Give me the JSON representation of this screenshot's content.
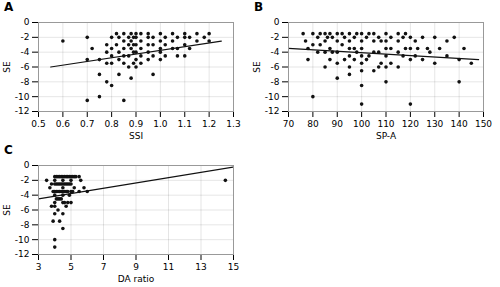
{
  "chart_data": [
    {
      "type": "scatter",
      "title": "A",
      "xlabel": "SSI",
      "ylabel": "SE",
      "xlim": [
        0.5,
        1.3
      ],
      "ylim": [
        -12,
        0
      ],
      "xticks": [
        0.5,
        0.6,
        0.7,
        0.8,
        0.9,
        {
          "value": 1.0,
          "label": "1.0"
        },
        1.1,
        1.2,
        1.3
      ],
      "yticks": [
        -12,
        -10,
        -8,
        -6,
        -4,
        -2,
        0
      ],
      "grid": true,
      "series": [
        {
          "type": "scatter",
          "color": "#111111",
          "x": [
            0.6,
            0.7,
            0.7,
            0.7,
            0.72,
            0.75,
            0.75,
            0.75,
            0.78,
            0.78,
            0.78,
            0.78,
            0.8,
            0.8,
            0.8,
            0.8,
            0.8,
            0.82,
            0.82,
            0.83,
            0.83,
            0.83,
            0.83,
            0.85,
            0.85,
            0.85,
            0.85,
            0.85,
            0.85,
            0.87,
            0.87,
            0.87,
            0.87,
            0.88,
            0.88,
            0.88,
            0.88,
            0.89,
            0.89,
            0.89,
            0.89,
            0.9,
            0.9,
            0.9,
            0.9,
            0.9,
            0.9,
            0.92,
            0.92,
            0.92,
            0.92,
            0.92,
            0.95,
            0.95,
            0.95,
            0.95,
            0.95,
            0.97,
            0.97,
            0.97,
            0.97,
            1.0,
            1.0,
            1.0,
            1.0,
            1.0,
            1.02,
            1.02,
            1.02,
            1.05,
            1.05,
            1.05,
            1.07,
            1.07,
            1.07,
            1.1,
            1.1,
            1.1,
            1.1,
            1.12,
            1.12,
            1.15,
            1.15,
            1.18,
            1.2,
            1.2
          ],
          "values": [
            -2.5,
            -2.0,
            -5.0,
            -10.5,
            -3.5,
            -5.0,
            -7.0,
            -10.0,
            -3.0,
            -4.0,
            -5.5,
            -8.0,
            -2.0,
            -3.5,
            -4.5,
            -5.5,
            -8.5,
            -1.5,
            -3.0,
            -2.0,
            -4.0,
            -5.0,
            -7.0,
            -1.5,
            -2.5,
            -3.5,
            -4.5,
            -5.5,
            -10.5,
            -2.0,
            -3.0,
            -4.5,
            -6.0,
            -1.5,
            -2.5,
            -3.5,
            -7.5,
            -2.0,
            -3.0,
            -4.0,
            -5.5,
            -1.5,
            -2.0,
            -3.0,
            -4.0,
            -5.0,
            -6.0,
            -1.5,
            -2.5,
            -3.5,
            -4.5,
            -5.5,
            -1.5,
            -2.0,
            -3.0,
            -4.0,
            -5.0,
            -2.0,
            -3.0,
            -4.5,
            -7.0,
            -1.5,
            -2.5,
            -3.5,
            -4.0,
            -5.0,
            -2.0,
            -3.0,
            -4.5,
            -1.5,
            -2.5,
            -3.5,
            -2.0,
            -3.5,
            -4.5,
            -1.5,
            -2.0,
            -3.0,
            -4.5,
            -2.0,
            -3.5,
            -1.5,
            -2.5,
            -2.0,
            -1.5,
            -2.5
          ]
        },
        {
          "type": "line",
          "color": "#111111",
          "x": [
            0.55,
            1.25
          ],
          "values": [
            -6.0,
            -2.5
          ]
        }
      ]
    },
    {
      "type": "scatter",
      "title": "B",
      "xlabel": "SP-A",
      "ylabel": "SE",
      "xlim": [
        70,
        150
      ],
      "ylim": [
        -12,
        0
      ],
      "xticks": [
        70,
        80,
        90,
        100,
        110,
        120,
        130,
        140,
        150
      ],
      "yticks": [
        -12,
        -10,
        -8,
        -6,
        -4,
        -2,
        0
      ],
      "grid": true,
      "series": [
        {
          "type": "scatter",
          "color": "#111111",
          "x": [
            76,
            77,
            78,
            78,
            80,
            80,
            80,
            82,
            82,
            83,
            83,
            85,
            85,
            85,
            85,
            86,
            87,
            87,
            87,
            88,
            88,
            90,
            90,
            90,
            90,
            90,
            92,
            92,
            93,
            93,
            95,
            95,
            95,
            95,
            95,
            95,
            97,
            97,
            97,
            98,
            98,
            100,
            100,
            100,
            100,
            100,
            100,
            100,
            100,
            102,
            102,
            103,
            103,
            105,
            105,
            105,
            105,
            107,
            107,
            107,
            108,
            108,
            110,
            110,
            110,
            110,
            110,
            110,
            112,
            112,
            112,
            115,
            115,
            115,
            115,
            117,
            117,
            118,
            118,
            120,
            120,
            120,
            120,
            122,
            122,
            123,
            125,
            125,
            127,
            128,
            130,
            130,
            132,
            135,
            135,
            138,
            140,
            140,
            142,
            145
          ],
          "values": [
            -1.5,
            -2.5,
            -3.5,
            -5.0,
            -1.5,
            -3.0,
            -10.0,
            -2.0,
            -4.0,
            -1.5,
            -3.0,
            -1.5,
            -2.5,
            -4.0,
            -6.0,
            -2.0,
            -1.5,
            -3.5,
            -5.0,
            -2.0,
            -4.0,
            -1.5,
            -2.5,
            -4.0,
            -5.5,
            -7.5,
            -1.5,
            -3.0,
            -2.0,
            -5.0,
            -1.5,
            -2.5,
            -3.5,
            -4.5,
            -6.0,
            -7.0,
            -2.0,
            -3.5,
            -5.0,
            -1.5,
            -4.0,
            -1.5,
            -2.5,
            -3.5,
            -4.5,
            -5.5,
            -6.5,
            -8.5,
            -11.0,
            -2.0,
            -5.0,
            -1.5,
            -4.5,
            -1.5,
            -2.5,
            -4.0,
            -6.5,
            -2.0,
            -4.0,
            -6.0,
            -2.5,
            -5.5,
            -1.5,
            -2.5,
            -3.5,
            -4.5,
            -6.0,
            -8.0,
            -2.0,
            -3.5,
            -5.5,
            -1.5,
            -2.5,
            -4.0,
            -6.0,
            -2.0,
            -4.5,
            -1.5,
            -3.5,
            -2.0,
            -3.5,
            -5.0,
            -11.0,
            -2.5,
            -4.5,
            -3.5,
            -2.0,
            -5.0,
            -3.5,
            -4.0,
            -2.0,
            -5.5,
            -3.5,
            -2.5,
            -4.5,
            -2.0,
            -5.0,
            -8.0,
            -3.5,
            -5.5
          ]
        },
        {
          "type": "line",
          "color": "#111111",
          "x": [
            70,
            148
          ],
          "values": [
            -3.5,
            -5.0
          ]
        }
      ]
    },
    {
      "type": "scatter",
      "title": "C",
      "xlabel": "DA ratio",
      "ylabel": "SE",
      "xlim": [
        3,
        15
      ],
      "ylim": [
        -12,
        0
      ],
      "xticks": [
        3,
        5,
        7,
        9,
        11,
        13,
        15
      ],
      "yticks": [
        -12,
        -10,
        -8,
        -6,
        -4,
        -2,
        0
      ],
      "grid": true,
      "series": [
        {
          "type": "scatter",
          "color": "#111111",
          "x": [
            3.5,
            3.7,
            3.8,
            3.8,
            3.9,
            3.9,
            4.0,
            4.0,
            4.0,
            4.0,
            4.0,
            4.0,
            4.0,
            4.0,
            4.0,
            4.0,
            4.1,
            4.1,
            4.1,
            4.1,
            4.2,
            4.2,
            4.2,
            4.2,
            4.2,
            4.3,
            4.3,
            4.3,
            4.3,
            4.3,
            4.4,
            4.4,
            4.4,
            4.4,
            4.5,
            4.5,
            4.5,
            4.5,
            4.5,
            4.5,
            4.5,
            4.5,
            4.5,
            4.6,
            4.6,
            4.6,
            4.6,
            4.7,
            4.7,
            4.7,
            4.7,
            4.8,
            4.8,
            4.8,
            4.8,
            4.9,
            4.9,
            4.9,
            5.0,
            5.0,
            5.0,
            5.0,
            5.0,
            5.1,
            5.1,
            5.2,
            5.2,
            5.3,
            5.5,
            5.5,
            5.6,
            5.8,
            6.0,
            14.5
          ],
          "values": [
            -2.0,
            -3.0,
            -2.5,
            -5.5,
            -3.5,
            -7.5,
            -1.5,
            -2.0,
            -2.5,
            -3.5,
            -4.0,
            -5.0,
            -5.5,
            -6.5,
            -10.0,
            -11.0,
            -1.5,
            -2.5,
            -3.5,
            -4.5,
            -1.5,
            -2.5,
            -3.5,
            -4.5,
            -6.0,
            -1.5,
            -2.5,
            -3.5,
            -4.5,
            -7.5,
            -1.5,
            -2.5,
            -3.5,
            -4.5,
            -1.5,
            -2.0,
            -2.5,
            -3.0,
            -3.5,
            -4.0,
            -5.0,
            -6.5,
            -8.5,
            -1.5,
            -2.5,
            -3.5,
            -5.0,
            -1.5,
            -2.5,
            -3.5,
            -5.5,
            -1.5,
            -2.5,
            -3.5,
            -5.0,
            -1.5,
            -2.5,
            -4.0,
            -1.5,
            -2.0,
            -2.5,
            -3.5,
            -5.0,
            -1.5,
            -3.5,
            -1.5,
            -3.0,
            -1.5,
            -1.5,
            -3.5,
            -2.0,
            -3.0,
            -3.5,
            -2.0
          ]
        },
        {
          "type": "line",
          "color": "#111111",
          "x": [
            3,
            15
          ],
          "values": [
            -4.5,
            -0.2
          ]
        }
      ]
    }
  ]
}
